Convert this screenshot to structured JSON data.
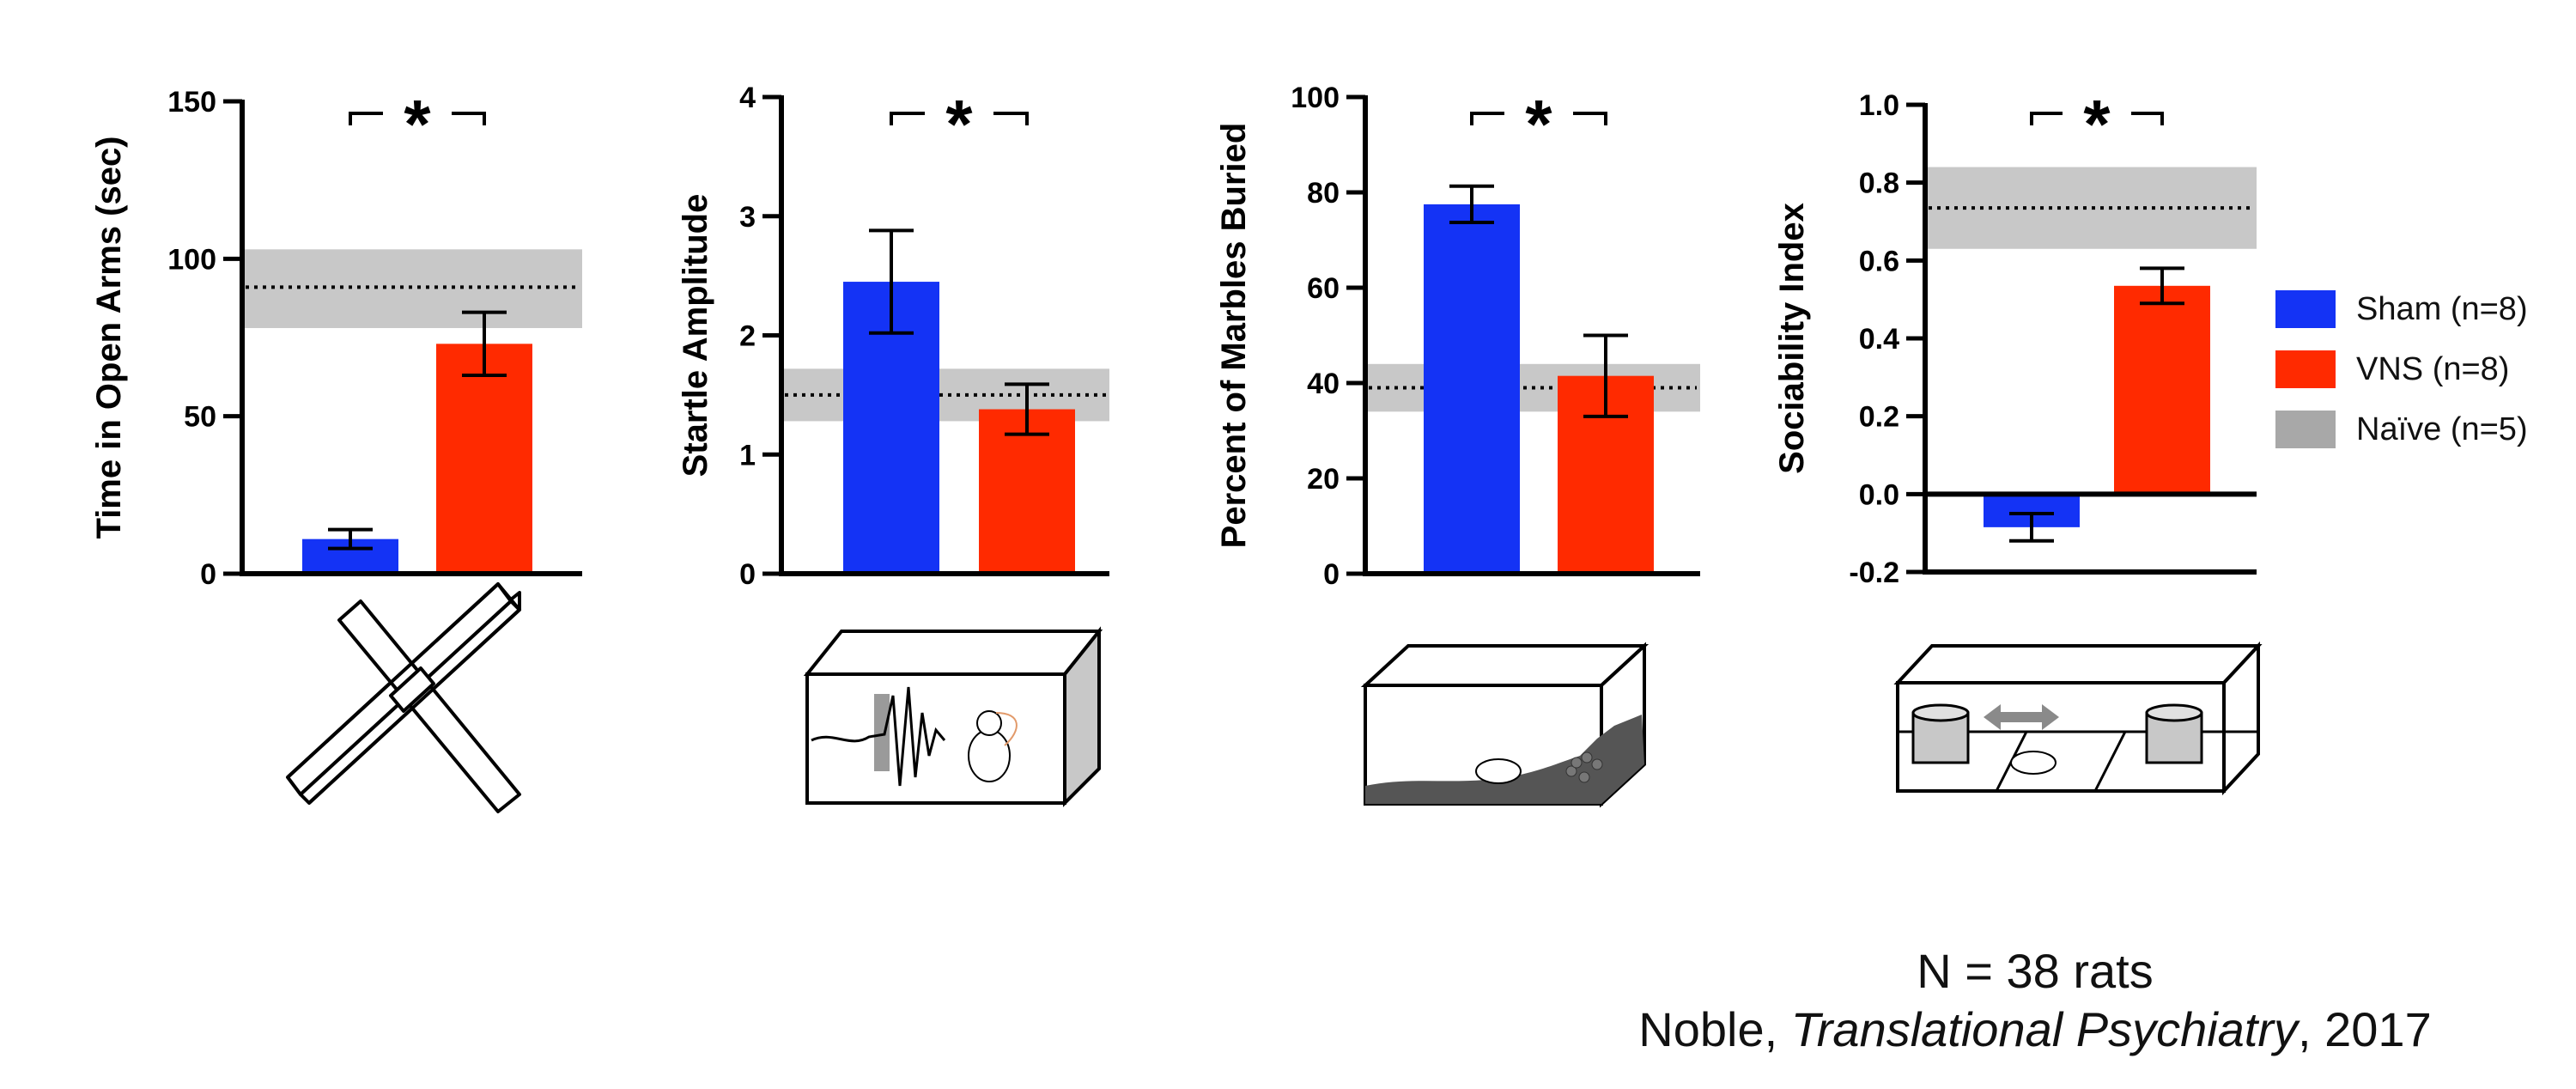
{
  "chart_data": [
    {
      "type": "bar",
      "ylabel": "Time in Open Arms (sec)",
      "ylim": [
        0,
        150
      ],
      "yticks": [
        0,
        50,
        100,
        150
      ],
      "categories": [
        "Sham",
        "VNS"
      ],
      "values": [
        11,
        73
      ],
      "errors": [
        3,
        10
      ],
      "reference": {
        "mean": 91,
        "band": [
          78,
          103
        ]
      },
      "significance": "*",
      "illustration": "elevated-plus-maze"
    },
    {
      "type": "bar",
      "ylabel": "Startle Amplitude",
      "ylim": [
        0,
        4
      ],
      "yticks": [
        0,
        1,
        2,
        3,
        4
      ],
      "categories": [
        "Sham",
        "VNS"
      ],
      "values": [
        2.45,
        1.38
      ],
      "errors": [
        0.43,
        0.21
      ],
      "reference": {
        "mean": 1.5,
        "band": [
          1.28,
          1.72
        ]
      },
      "significance": "*",
      "illustration": "startle-chamber"
    },
    {
      "type": "bar",
      "ylabel": "Percent of Marbles Buried",
      "ylim": [
        0,
        100
      ],
      "yticks": [
        0,
        20,
        40,
        60,
        80,
        100
      ],
      "categories": [
        "Sham",
        "VNS"
      ],
      "values": [
        77.5,
        41.5
      ],
      "errors": [
        3.8,
        8.5
      ],
      "reference": {
        "mean": 39,
        "band": [
          34,
          44
        ]
      },
      "significance": "*",
      "illustration": "marble-burying-cage"
    },
    {
      "type": "bar",
      "ylabel": "Sociability Index",
      "ylim": [
        -0.2,
        1.0
      ],
      "yticks": [
        "-0.2",
        "0.0",
        "0.2",
        "0.4",
        "0.6",
        "0.8",
        "1.0"
      ],
      "categories": [
        "Sham",
        "VNS"
      ],
      "values": [
        -0.085,
        0.535
      ],
      "errors": [
        0.035,
        0.045
      ],
      "reference": {
        "mean": 0.735,
        "band": [
          0.63,
          0.84
        ]
      },
      "significance": "*",
      "illustration": "three-chamber-box"
    }
  ],
  "colors": {
    "sham": "#1433f5",
    "vns": "#ff2a00",
    "naive_band": "#c8c8c8",
    "naive_swatch": "#a8a8a8",
    "axis": "#000000"
  },
  "legend": [
    {
      "key": "sham",
      "label": "Sham (n=8)"
    },
    {
      "key": "vns",
      "label": "VNS (n=8)"
    },
    {
      "key": "naive",
      "label": "Naïve (n=5)"
    }
  ],
  "caption": {
    "line1": "N = 38 rats",
    "author": "Noble, ",
    "journal": "Translational Psychiatry",
    "year": ", 2017"
  }
}
